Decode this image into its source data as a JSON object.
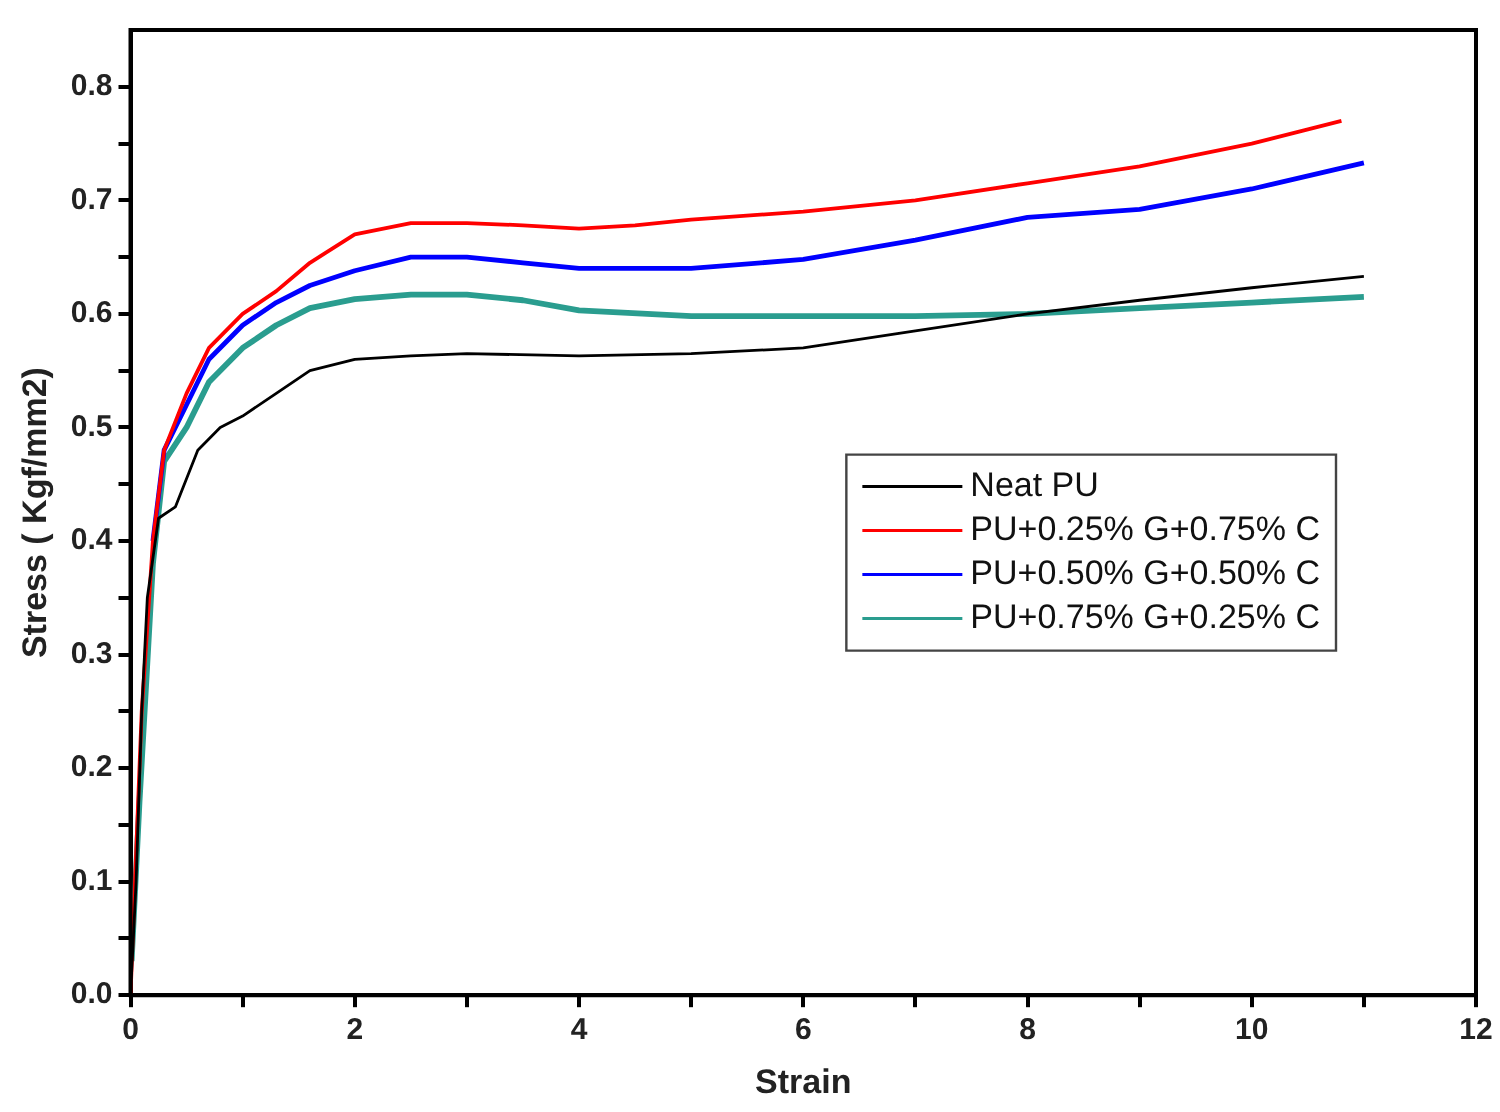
{
  "chart_data": {
    "type": "line",
    "xlabel": "Strain",
    "ylabel": "Stress ( Kgf/mm2)",
    "xlim": [
      0,
      12
    ],
    "ylim": [
      0,
      0.85
    ],
    "xticks": [
      0,
      {
        "value": 1,
        "label": null
      },
      2,
      {
        "value": 3,
        "label": null
      },
      4,
      {
        "value": 5,
        "label": null
      },
      6,
      {
        "value": 7,
        "label": null
      },
      8,
      {
        "value": 9,
        "label": null
      },
      10,
      {
        "value": 11,
        "label": null
      },
      12
    ],
    "yticks": [
      {
        "value": 0,
        "label": "0.0"
      },
      {
        "value": 0.05,
        "label": null
      },
      0.1,
      {
        "value": 0.15,
        "label": null
      },
      0.2,
      {
        "value": 0.25,
        "label": null
      },
      0.3,
      {
        "value": 0.35,
        "label": null
      },
      0.4,
      {
        "value": 0.45,
        "label": null
      },
      0.5,
      {
        "value": 0.55,
        "label": null
      },
      0.6,
      {
        "value": 0.65,
        "label": null
      },
      0.7,
      {
        "value": 0.75,
        "label": null
      },
      0.8
    ],
    "grid": false,
    "legend": "center right",
    "marker": "none",
    "line_style": "solid",
    "series": [
      {
        "name": "Neat PU",
        "color": "#000000",
        "x": [
          0,
          0.05,
          0.1,
          0.15,
          0.25,
          0.4,
          0.6,
          0.8,
          1.0,
          1.3,
          1.6,
          2,
          2.5,
          3,
          4,
          5,
          6,
          7,
          8,
          9,
          10,
          11
        ],
        "values": [
          0,
          0.1,
          0.25,
          0.35,
          0.42,
          0.43,
          0.48,
          0.5,
          0.51,
          0.53,
          0.55,
          0.56,
          0.563,
          0.565,
          0.563,
          0.565,
          0.57,
          0.585,
          0.6,
          0.612,
          0.623,
          0.633
        ]
      },
      {
        "name": "PU+0.25% G+0.75% C",
        "color": "#ff0000",
        "x": [
          0,
          0.1,
          0.2,
          0.3,
          0.5,
          0.7,
          1.0,
          1.3,
          1.6,
          2,
          2.5,
          3,
          3.5,
          4,
          4.5,
          5,
          6,
          7,
          8,
          9,
          10,
          10.8
        ],
        "values": [
          0,
          0.25,
          0.4,
          0.48,
          0.53,
          0.57,
          0.6,
          0.62,
          0.645,
          0.67,
          0.68,
          0.68,
          0.678,
          0.675,
          0.678,
          0.683,
          0.69,
          0.7,
          0.715,
          0.73,
          0.75,
          0.77
        ]
      },
      {
        "name": "PU+0.50% G+0.50% C",
        "color": "#0000ff",
        "x": [
          0.2,
          0.3,
          0.5,
          0.7,
          1.0,
          1.3,
          1.6,
          2,
          2.5,
          3,
          3.5,
          4,
          5,
          6,
          7,
          8,
          9,
          10,
          11
        ],
        "values": [
          0.4,
          0.48,
          0.52,
          0.56,
          0.59,
          0.61,
          0.625,
          0.638,
          0.65,
          0.65,
          0.645,
          0.64,
          0.64,
          0.648,
          0.665,
          0.685,
          0.692,
          0.71,
          0.733
        ]
      },
      {
        "name": "PU+0.75% G+0.25% C",
        "color": "#2a9d8f",
        "x": [
          0.01,
          0.08,
          0.2,
          0.3,
          0.5,
          0.7,
          1.0,
          1.3,
          1.6,
          2,
          2.5,
          3,
          3.5,
          4,
          5,
          6,
          7,
          8,
          9,
          10,
          11
        ],
        "values": [
          0.03,
          0.17,
          0.38,
          0.47,
          0.5,
          0.54,
          0.57,
          0.59,
          0.605,
          0.613,
          0.617,
          0.617,
          0.612,
          0.603,
          0.598,
          0.598,
          0.598,
          0.6,
          0.605,
          0.61,
          0.615
        ]
      }
    ]
  }
}
